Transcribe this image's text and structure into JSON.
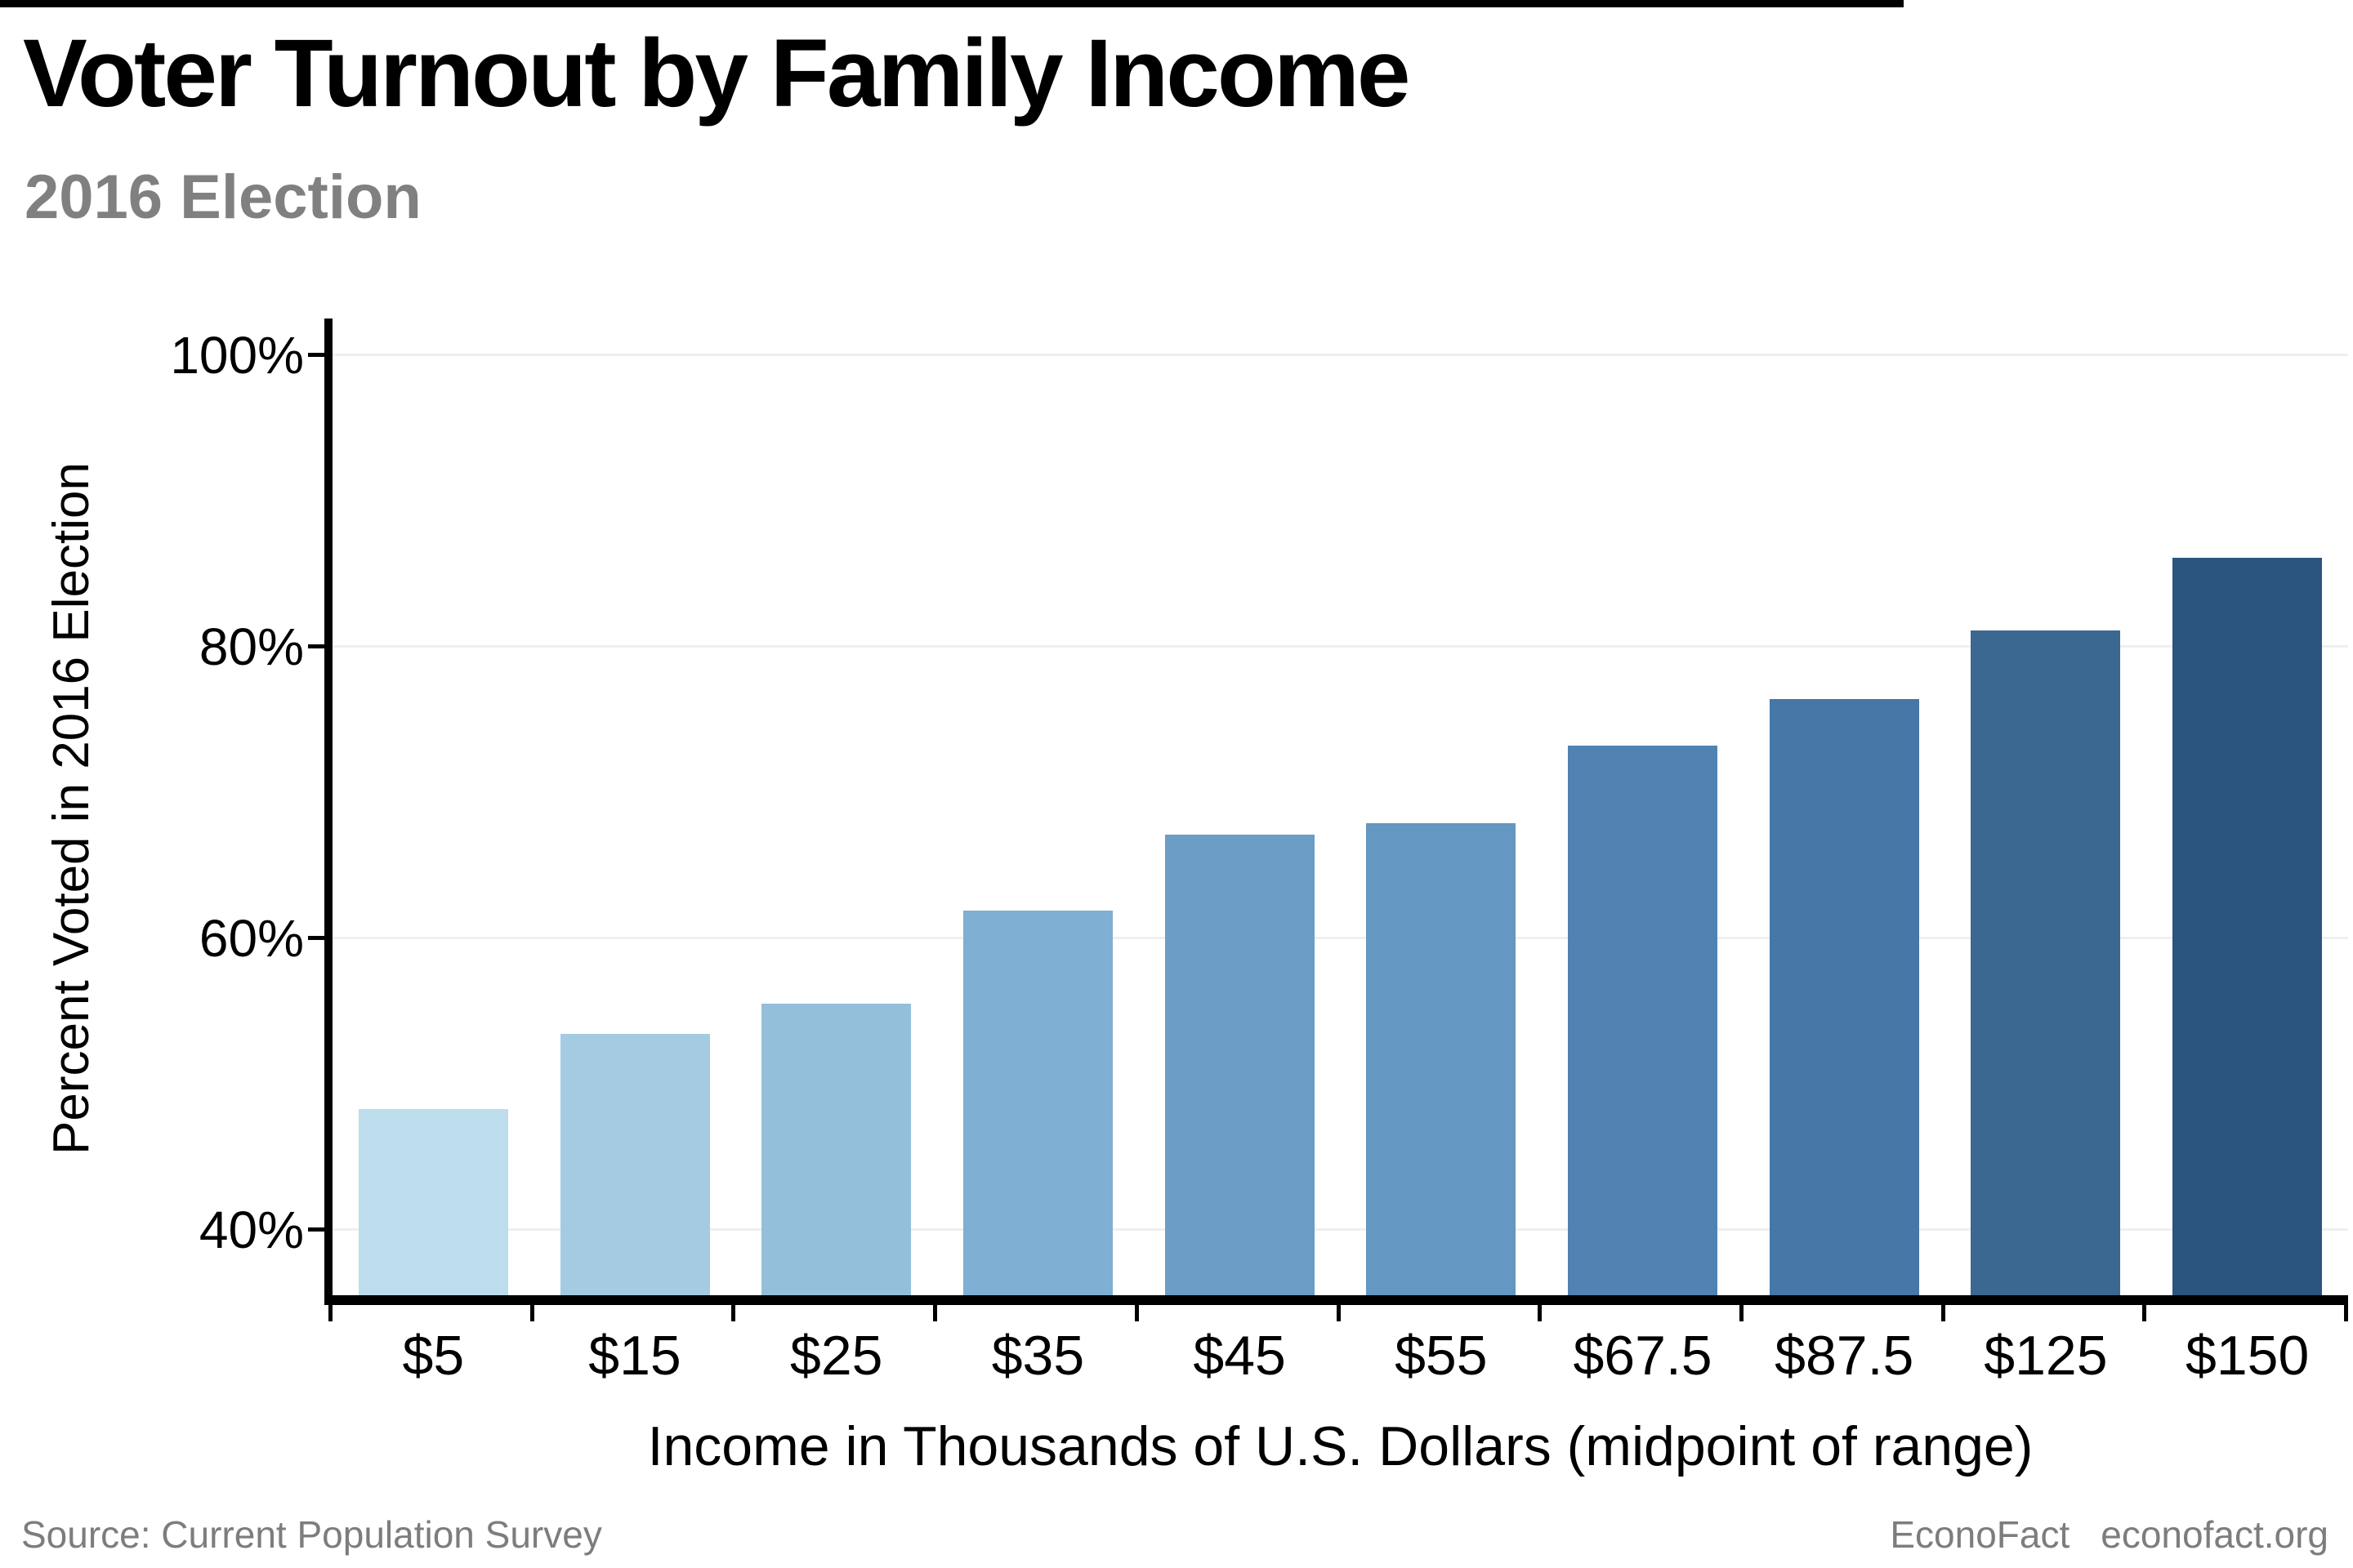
{
  "header": {
    "title": "Voter Turnout by Family Income",
    "subtitle": "2016 Election"
  },
  "footer": {
    "source": "Source: Current Population Survey",
    "brand": "EconoFact",
    "site": "econofact.org"
  },
  "colors": {
    "title": "#000000",
    "subtitle": "#808080",
    "footer_text": "#7d7d7d",
    "axis": "#000000",
    "gridline": "#efefef"
  },
  "chart_data": {
    "type": "bar",
    "title": "Voter Turnout by Family Income",
    "subtitle": "2016 Election",
    "categories": [
      "$5",
      "$15",
      "$25",
      "$35",
      "$45",
      "$55",
      "$67.5",
      "$87.5",
      "$125",
      "$150"
    ],
    "values": [
      48.3,
      53.4,
      55.5,
      61.9,
      67.1,
      67.9,
      73.2,
      76.4,
      81.1,
      86.1
    ],
    "bar_colors": [
      "#bddcec",
      "#a5cbe2",
      "#93bfda",
      "#7fafd2",
      "#6b9dc6",
      "#6497c1",
      "#5182b1",
      "#4677a6",
      "#3a6890",
      "#2b547e"
    ],
    "xlabel": "Income in Thousands of U.S. Dollars (midpoint of range)",
    "ylabel": "Percent Voted in 2016 Election",
    "yticks": [
      40,
      60,
      80,
      100
    ],
    "ytick_labels": [
      "40%",
      "60%",
      "80%",
      "100%"
    ],
    "ylim": [
      35.5,
      102.5
    ],
    "grid": "horizontal-light",
    "legend": "none",
    "source_note": "Source: Current Population Survey"
  }
}
